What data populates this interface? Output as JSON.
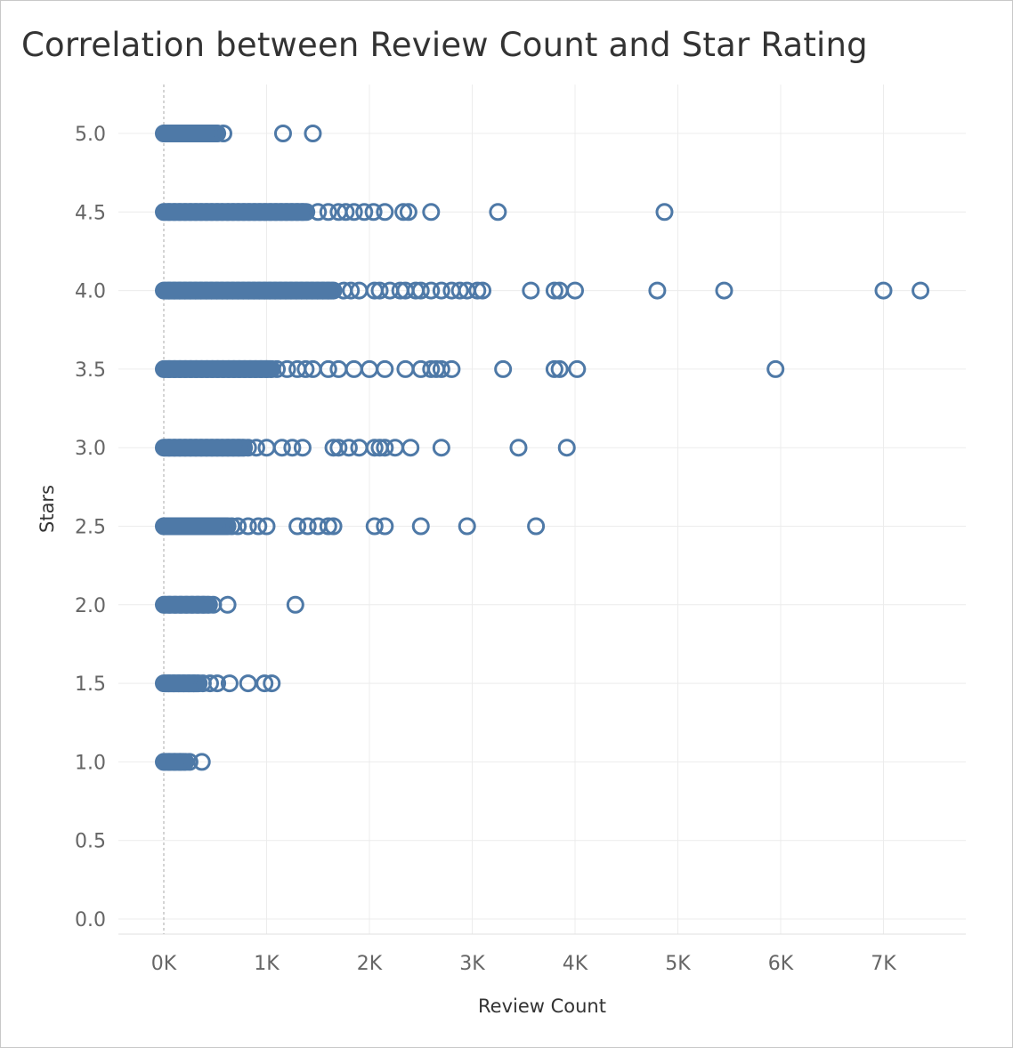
{
  "chart_data": {
    "type": "scatter",
    "title": "Correlation between Review Count and Star Rating",
    "xlabel": "Review Count",
    "ylabel": "Stars",
    "xlim": [
      -450,
      7800
    ],
    "ylim": [
      0,
      5.3
    ],
    "xticks": [
      0,
      1000,
      2000,
      3000,
      4000,
      5000,
      6000,
      7000
    ],
    "xtick_labels": [
      "0K",
      "1K",
      "2K",
      "3K",
      "4K",
      "5K",
      "6K",
      "7K"
    ],
    "yticks": [
      0,
      0.5,
      1.0,
      1.5,
      2.0,
      2.5,
      3.0,
      3.5,
      4.0,
      4.5,
      5.0
    ],
    "ytick_labels": [
      "0.0",
      "0.5",
      "1.0",
      "1.5",
      "2.0",
      "2.5",
      "3.0",
      "3.5",
      "4.0",
      "4.5",
      "5.0"
    ],
    "grid": true,
    "marker": "hollow-circle",
    "series_color": "#4e79a7",
    "dense_clusters": [
      {
        "stars": 5.0,
        "x_from": 0,
        "x_to": 520
      },
      {
        "stars": 4.5,
        "x_from": 0,
        "x_to": 1400
      },
      {
        "stars": 4.0,
        "x_from": 0,
        "x_to": 1650
      },
      {
        "stars": 3.5,
        "x_from": 0,
        "x_to": 1050
      },
      {
        "stars": 3.0,
        "x_from": 0,
        "x_to": 780
      },
      {
        "stars": 2.5,
        "x_from": 0,
        "x_to": 620
      },
      {
        "stars": 2.0,
        "x_from": 0,
        "x_to": 440
      },
      {
        "stars": 1.5,
        "x_from": 0,
        "x_to": 340
      },
      {
        "stars": 1.0,
        "x_from": 0,
        "x_to": 210
      }
    ],
    "points": [
      {
        "stars": 5.0,
        "x": [
          580,
          1160,
          1450
        ]
      },
      {
        "stars": 4.5,
        "x": [
          1500,
          1600,
          1700,
          1770,
          1850,
          1950,
          2040,
          2150,
          2330,
          2380,
          2600,
          3250,
          4870
        ]
      },
      {
        "stars": 4.0,
        "x": [
          1750,
          1820,
          1900,
          2050,
          2100,
          2200,
          2300,
          2350,
          2450,
          2500,
          2600,
          2700,
          2800,
          2880,
          2950,
          3050,
          3100,
          3570,
          3800,
          3850,
          4000,
          4800,
          5450,
          7000,
          7360
        ]
      },
      {
        "stars": 3.5,
        "x": [
          1100,
          1200,
          1300,
          1380,
          1450,
          1600,
          1700,
          1850,
          2000,
          2150,
          2350,
          2500,
          2600,
          2650,
          2700,
          2800,
          3300,
          3800,
          3850,
          4020,
          5950
        ]
      },
      {
        "stars": 3.0,
        "x": [
          820,
          900,
          1000,
          1150,
          1250,
          1350,
          1650,
          1700,
          1800,
          1900,
          2050,
          2100,
          2150,
          2250,
          2400,
          2700,
          3450,
          3920
        ]
      },
      {
        "stars": 2.5,
        "x": [
          660,
          720,
          820,
          920,
          1000,
          1300,
          1400,
          1500,
          1600,
          1650,
          2050,
          2150,
          2500,
          2950,
          3620
        ]
      },
      {
        "stars": 2.0,
        "x": [
          480,
          620,
          1280
        ]
      },
      {
        "stars": 1.5,
        "x": [
          380,
          450,
          520,
          640,
          820,
          980,
          1050
        ]
      },
      {
        "stars": 1.0,
        "x": [
          250,
          370
        ]
      }
    ]
  }
}
